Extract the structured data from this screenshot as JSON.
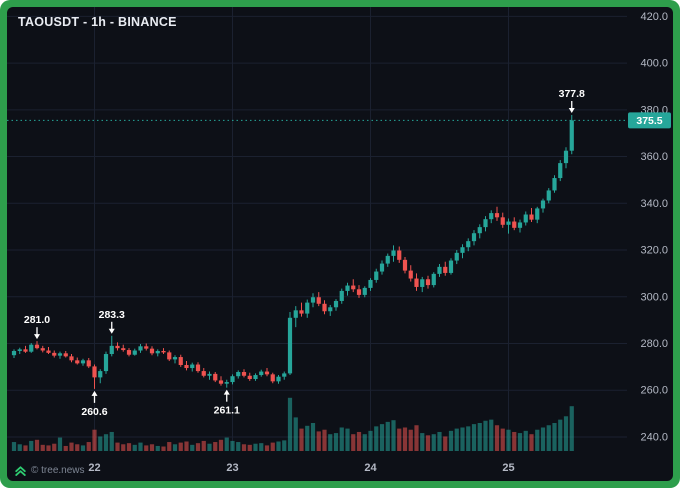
{
  "header": {
    "title": "TAOUSDT - 1h - BINANCE"
  },
  "watermark": {
    "label": "© tree.news",
    "icon": "double-chevron-up-icon"
  },
  "colors": {
    "frame_green": "#2e9e4c",
    "background": "#0d1017",
    "up": "#26a69a",
    "down": "#ef5350",
    "grid": "#1b2130",
    "axis_text": "#b4b9c5",
    "title_text": "#e9ecf2",
    "annotation_text": "#ffffff",
    "badge_bg": "#26a69a",
    "badge_text": "#ffffff",
    "dotted_line": "#26a69a",
    "watermark_text": "#7e8694",
    "watermark_icon": "#2ecc71"
  },
  "chart_data": {
    "type": "candlestick",
    "symbol": "TAOUSDT",
    "interval": "1h",
    "exchange": "BINANCE",
    "title": "TAOUSDT - 1h - BINANCE",
    "grid": true,
    "legend_position": "none",
    "ylim": [
      234,
      424
    ],
    "y_ticks": [
      420,
      400,
      380,
      360,
      340,
      320,
      300,
      280,
      260,
      240
    ],
    "y_tick_labels": [
      "420.0",
      "400.0",
      "380.0",
      "360.0",
      "340.0",
      "320.0",
      "300.0",
      "280.0",
      "260.0",
      "240.0"
    ],
    "x_ticks": [
      {
        "index": 14,
        "label": "22"
      },
      {
        "index": 38,
        "label": "23"
      },
      {
        "index": 62,
        "label": "24"
      },
      {
        "index": 86,
        "label": "25"
      }
    ],
    "last_price": 375.5,
    "last_price_label": "375.5",
    "annotations": [
      {
        "label": "281.0",
        "index": 4,
        "side": "above"
      },
      {
        "label": "260.6",
        "index": 14,
        "side": "below"
      },
      {
        "label": "283.3",
        "index": 17,
        "side": "above"
      },
      {
        "label": "261.1",
        "index": 37,
        "side": "below"
      },
      {
        "label": "377.8",
        "index": 97,
        "side": "above"
      }
    ],
    "ohlcv_columns": [
      "open",
      "high",
      "low",
      "close",
      "volume"
    ],
    "candles": [
      [
        275.0,
        277.5,
        273.8,
        276.8,
        1.6
      ],
      [
        276.8,
        278.2,
        275.5,
        277.5,
        1.2
      ],
      [
        277.5,
        279.0,
        276.0,
        276.5,
        1.0
      ],
      [
        276.5,
        280.2,
        276.0,
        279.5,
        1.8
      ],
      [
        279.5,
        281.0,
        277.5,
        278.0,
        2.0
      ],
      [
        278.0,
        279.0,
        276.2,
        277.0,
        1.1
      ],
      [
        277.0,
        278.5,
        275.5,
        276.0,
        1.0
      ],
      [
        276.0,
        277.0,
        274.0,
        274.8,
        1.3
      ],
      [
        274.8,
        276.5,
        273.5,
        275.8,
        2.4
      ],
      [
        275.8,
        276.8,
        274.0,
        274.5,
        0.9
      ],
      [
        274.5,
        275.5,
        272.0,
        272.8,
        1.5
      ],
      [
        272.8,
        274.0,
        271.0,
        271.5,
        1.2
      ],
      [
        271.5,
        273.5,
        270.5,
        272.8,
        1.0
      ],
      [
        272.8,
        273.8,
        269.5,
        270.2,
        1.6
      ],
      [
        270.2,
        271.0,
        260.6,
        265.5,
        3.8
      ],
      [
        265.5,
        269.0,
        263.0,
        268.2,
        2.6
      ],
      [
        268.2,
        276.5,
        267.0,
        275.5,
        3.0
      ],
      [
        275.5,
        283.3,
        274.5,
        279.0,
        3.4
      ],
      [
        279.0,
        280.5,
        277.0,
        278.0,
        1.5
      ],
      [
        278.0,
        279.5,
        276.5,
        277.2,
        1.2
      ],
      [
        277.2,
        278.0,
        274.5,
        275.2,
        1.4
      ],
      [
        275.2,
        277.8,
        274.8,
        277.0,
        1.1
      ],
      [
        277.0,
        279.8,
        276.0,
        278.8,
        1.5
      ],
      [
        278.8,
        280.0,
        277.0,
        277.8,
        1.0
      ],
      [
        277.8,
        278.8,
        275.0,
        275.8,
        1.2
      ],
      [
        275.8,
        277.5,
        274.5,
        276.8,
        0.9
      ],
      [
        276.8,
        278.0,
        275.5,
        276.2,
        0.8
      ],
      [
        276.2,
        277.0,
        272.5,
        273.2,
        1.6
      ],
      [
        273.2,
        275.0,
        271.5,
        274.2,
        1.2
      ],
      [
        274.2,
        275.2,
        270.0,
        270.8,
        1.5
      ],
      [
        270.8,
        272.5,
        268.5,
        269.5,
        1.7
      ],
      [
        269.5,
        271.8,
        268.0,
        271.0,
        1.1
      ],
      [
        271.0,
        272.0,
        267.5,
        268.2,
        1.4
      ],
      [
        268.2,
        269.5,
        265.5,
        266.2,
        1.8
      ],
      [
        266.2,
        268.0,
        264.5,
        267.0,
        1.3
      ],
      [
        267.0,
        267.8,
        263.5,
        264.2,
        1.6
      ],
      [
        264.2,
        266.0,
        262.0,
        262.8,
        2.0
      ],
      [
        262.8,
        264.5,
        261.1,
        263.5,
        2.4
      ],
      [
        263.5,
        266.8,
        262.5,
        266.0,
        1.8
      ],
      [
        266.0,
        268.5,
        265.0,
        267.8,
        1.6
      ],
      [
        267.8,
        269.0,
        265.5,
        266.2,
        1.2
      ],
      [
        266.2,
        267.5,
        264.0,
        264.8,
        1.1
      ],
      [
        264.8,
        267.2,
        264.0,
        266.5,
        1.3
      ],
      [
        266.5,
        268.8,
        265.8,
        268.0,
        1.4
      ],
      [
        268.0,
        269.5,
        266.0,
        266.8,
        1.0
      ],
      [
        266.8,
        267.5,
        263.0,
        263.8,
        1.5
      ],
      [
        263.8,
        266.5,
        262.8,
        265.8,
        1.7
      ],
      [
        265.8,
        268.0,
        264.5,
        267.2,
        1.9
      ],
      [
        267.2,
        293.5,
        266.5,
        291.0,
        9.5
      ],
      [
        291.0,
        296.0,
        287.0,
        294.2,
        6.0
      ],
      [
        294.2,
        297.5,
        291.5,
        292.8,
        4.0
      ],
      [
        292.8,
        298.8,
        291.0,
        297.5,
        4.5
      ],
      [
        297.5,
        301.5,
        295.5,
        299.8,
        5.0
      ],
      [
        299.8,
        302.0,
        296.0,
        297.0,
        3.5
      ],
      [
        297.0,
        298.5,
        292.5,
        293.8,
        3.8
      ],
      [
        293.8,
        296.5,
        291.8,
        295.5,
        3.0
      ],
      [
        295.5,
        299.0,
        294.0,
        298.2,
        3.2
      ],
      [
        298.2,
        303.5,
        297.0,
        302.5,
        4.2
      ],
      [
        302.5,
        306.0,
        300.5,
        304.8,
        4.0
      ],
      [
        304.8,
        307.5,
        302.0,
        303.2,
        3.0
      ],
      [
        303.2,
        305.0,
        299.5,
        300.8,
        3.4
      ],
      [
        300.8,
        304.5,
        299.8,
        303.8,
        3.0
      ],
      [
        303.8,
        308.0,
        302.5,
        307.2,
        3.6
      ],
      [
        307.2,
        312.0,
        306.0,
        310.8,
        4.4
      ],
      [
        310.8,
        315.5,
        309.5,
        314.2,
        4.8
      ],
      [
        314.2,
        318.5,
        312.8,
        317.5,
        5.2
      ],
      [
        317.5,
        322.0,
        315.0,
        319.8,
        5.5
      ],
      [
        319.8,
        321.5,
        314.5,
        315.8,
        4.0
      ],
      [
        315.8,
        317.0,
        310.0,
        311.2,
        4.2
      ],
      [
        311.2,
        313.5,
        306.5,
        307.8,
        3.8
      ],
      [
        307.8,
        310.0,
        302.5,
        304.2,
        4.6
      ],
      [
        304.2,
        308.5,
        302.0,
        307.5,
        3.2
      ],
      [
        307.5,
        309.0,
        303.5,
        305.0,
        2.8
      ],
      [
        305.0,
        310.5,
        304.0,
        309.8,
        3.0
      ],
      [
        309.8,
        314.0,
        308.5,
        312.8,
        3.4
      ],
      [
        312.8,
        315.0,
        309.0,
        310.2,
        2.6
      ],
      [
        310.2,
        316.5,
        309.5,
        315.5,
        3.6
      ],
      [
        315.5,
        320.0,
        314.0,
        318.8,
        4.0
      ],
      [
        318.8,
        322.5,
        316.5,
        321.2,
        4.2
      ],
      [
        321.2,
        325.0,
        319.5,
        323.8,
        4.4
      ],
      [
        323.8,
        328.5,
        322.0,
        327.2,
        4.8
      ],
      [
        327.2,
        331.0,
        325.0,
        329.8,
        5.0
      ],
      [
        329.8,
        334.5,
        328.0,
        333.2,
        5.4
      ],
      [
        333.2,
        337.0,
        331.5,
        335.8,
        5.6
      ],
      [
        335.8,
        338.5,
        332.5,
        334.0,
        4.6
      ],
      [
        334.0,
        336.0,
        329.5,
        330.8,
        4.0
      ],
      [
        330.8,
        333.5,
        327.0,
        332.2,
        3.8
      ],
      [
        332.2,
        334.0,
        328.5,
        329.5,
        3.4
      ],
      [
        329.5,
        333.0,
        327.5,
        331.8,
        3.2
      ],
      [
        331.8,
        336.5,
        330.5,
        335.2,
        3.6
      ],
      [
        335.2,
        338.0,
        332.0,
        333.0,
        3.0
      ],
      [
        333.0,
        338.5,
        331.5,
        337.8,
        3.8
      ],
      [
        337.8,
        342.0,
        336.0,
        341.2,
        4.2
      ],
      [
        341.2,
        346.5,
        340.0,
        345.5,
        4.6
      ],
      [
        345.5,
        352.0,
        344.5,
        350.8,
        5.0
      ],
      [
        350.8,
        358.5,
        349.5,
        357.2,
        5.6
      ],
      [
        357.2,
        364.0,
        355.0,
        362.5,
        6.2
      ],
      [
        362.5,
        377.8,
        361.0,
        375.5,
        8.0
      ]
    ]
  }
}
